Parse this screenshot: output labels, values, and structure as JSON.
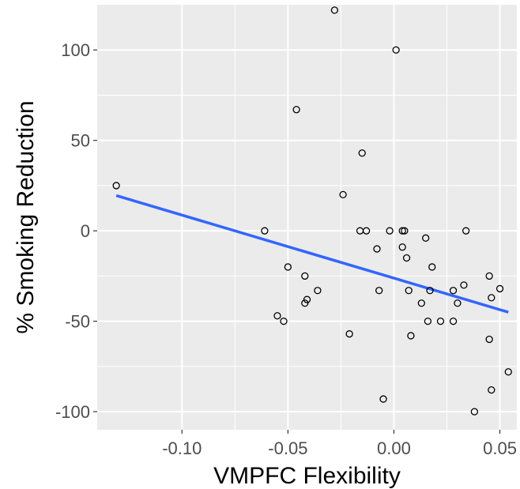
{
  "chart_data": {
    "type": "scatter",
    "xlabel": "VMPFC Flexibility",
    "ylabel": "% Smoking Reduction",
    "xlim": [
      -0.14,
      0.058
    ],
    "ylim": [
      -110,
      125
    ],
    "x_ticks": [
      -0.1,
      -0.05,
      0.0,
      0.05
    ],
    "x_tick_labels": [
      "-0.10",
      "-0.05",
      "0.00",
      "0.05"
    ],
    "y_ticks": [
      -100,
      -50,
      0,
      50,
      100
    ],
    "y_tick_labels": [
      "-100",
      "-50",
      "0",
      "50",
      "100"
    ],
    "grid": true,
    "panel_color": "#ebebeb",
    "grid_color": "#ffffff",
    "point_color": "#000000",
    "fit_line_color": "#3366ff",
    "points": [
      {
        "x": -0.131,
        "y": 25
      },
      {
        "x": -0.061,
        "y": 0
      },
      {
        "x": -0.055,
        "y": -47
      },
      {
        "x": -0.052,
        "y": -50
      },
      {
        "x": -0.05,
        "y": -20
      },
      {
        "x": -0.046,
        "y": 67
      },
      {
        "x": -0.042,
        "y": -25
      },
      {
        "x": -0.042,
        "y": -40
      },
      {
        "x": -0.041,
        "y": -38
      },
      {
        "x": -0.036,
        "y": -33
      },
      {
        "x": -0.028,
        "y": 122
      },
      {
        "x": -0.024,
        "y": 20
      },
      {
        "x": -0.021,
        "y": -57
      },
      {
        "x": -0.016,
        "y": 0
      },
      {
        "x": -0.015,
        "y": 43
      },
      {
        "x": -0.013,
        "y": 0
      },
      {
        "x": -0.008,
        "y": -10
      },
      {
        "x": -0.007,
        "y": -33
      },
      {
        "x": -0.005,
        "y": -93
      },
      {
        "x": -0.002,
        "y": 0
      },
      {
        "x": 0.001,
        "y": 100
      },
      {
        "x": 0.004,
        "y": 0
      },
      {
        "x": 0.004,
        "y": -9
      },
      {
        "x": 0.005,
        "y": 0
      },
      {
        "x": 0.006,
        "y": -15
      },
      {
        "x": 0.007,
        "y": -33
      },
      {
        "x": 0.008,
        "y": -58
      },
      {
        "x": 0.013,
        "y": -40
      },
      {
        "x": 0.015,
        "y": -4
      },
      {
        "x": 0.016,
        "y": -50
      },
      {
        "x": 0.017,
        "y": -33
      },
      {
        "x": 0.018,
        "y": -20
      },
      {
        "x": 0.022,
        "y": -50
      },
      {
        "x": 0.028,
        "y": -33
      },
      {
        "x": 0.028,
        "y": -50
      },
      {
        "x": 0.03,
        "y": -40
      },
      {
        "x": 0.033,
        "y": -30
      },
      {
        "x": 0.034,
        "y": 0
      },
      {
        "x": 0.038,
        "y": -100
      },
      {
        "x": 0.045,
        "y": -25
      },
      {
        "x": 0.045,
        "y": -60
      },
      {
        "x": 0.046,
        "y": -37
      },
      {
        "x": 0.046,
        "y": -88
      },
      {
        "x": 0.05,
        "y": -32
      },
      {
        "x": 0.054,
        "y": -78
      }
    ],
    "fit_line": {
      "x": [
        -0.131,
        0.054
      ],
      "y": [
        19.5,
        -45
      ]
    }
  }
}
